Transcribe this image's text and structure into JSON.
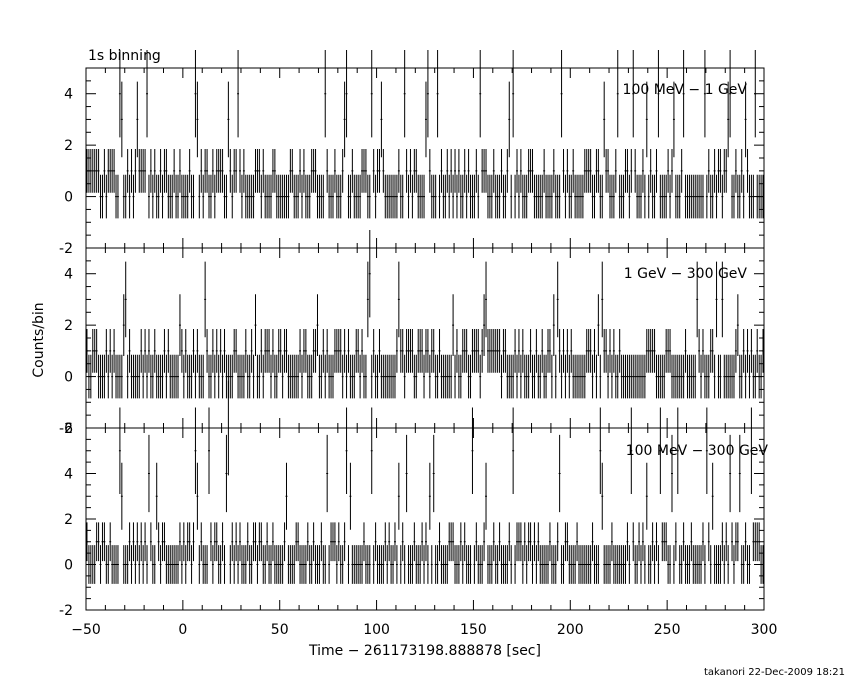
{
  "chart_data": {
    "type": "line",
    "title": "1s binning",
    "xlabel": "Time − 261173198.888878 [sec]",
    "ylabel": "Counts/bin",
    "xlim": [
      -50,
      300
    ],
    "x_ticks": [
      -50,
      0,
      50,
      100,
      150,
      200,
      250,
      300
    ],
    "grid": false,
    "binning_sec": 1,
    "color": "#000000",
    "panels": [
      {
        "label": "100 MeV − 1 GeV",
        "ylim": [
          -2,
          5
        ],
        "y_ticks": [
          -2,
          0,
          2,
          4
        ],
        "peaks": [
          [
            -32,
            3
          ],
          [
            -24,
            3
          ],
          [
            7,
            3
          ],
          [
            23,
            3
          ],
          [
            83,
            3
          ],
          [
            102,
            3
          ],
          [
            125,
            3
          ],
          [
            168,
            3
          ],
          [
            217,
            3
          ],
          [
            239,
            3
          ],
          [
            253,
            3
          ],
          [
            281,
            3
          ],
          [
            290,
            3
          ],
          [
            -33,
            4
          ],
          [
            -19,
            4
          ],
          [
            6,
            4
          ],
          [
            28,
            4
          ],
          [
            73,
            4
          ],
          [
            84,
            4
          ],
          [
            97,
            4
          ],
          [
            114,
            4
          ],
          [
            126,
            4
          ],
          [
            131,
            4
          ],
          [
            153,
            4
          ],
          [
            170,
            4
          ],
          [
            195,
            4
          ],
          [
            224,
            4
          ],
          [
            232,
            4
          ],
          [
            245,
            4
          ],
          [
            258,
            4
          ],
          [
            269,
            4
          ],
          [
            282,
            4
          ],
          [
            295,
            4
          ]
        ]
      },
      {
        "label": "1 GeV − 300 GeV",
        "ylim": [
          -2,
          5
        ],
        "y_ticks": [
          -2,
          0,
          2,
          4
        ],
        "peaks": [
          [
            -31,
            2
          ],
          [
            -2,
            2
          ],
          [
            11,
            2
          ],
          [
            37,
            2
          ],
          [
            69,
            2
          ],
          [
            95,
            3
          ],
          [
            111,
            2
          ],
          [
            139,
            2
          ],
          [
            155,
            2
          ],
          [
            191,
            2
          ],
          [
            214,
            2
          ],
          [
            265,
            2
          ],
          [
            286,
            2
          ],
          [
            -30,
            3
          ],
          [
            11,
            3
          ],
          [
            96,
            4
          ],
          [
            111,
            3
          ],
          [
            156,
            3
          ],
          [
            193,
            3
          ],
          [
            216,
            3
          ],
          [
            265,
            3
          ],
          [
            275,
            3
          ],
          [
            278,
            3
          ]
        ]
      },
      {
        "label": "100 MeV − 300 GeV",
        "ylim": [
          -2,
          6
        ],
        "y_ticks": [
          -2,
          0,
          2,
          4,
          6
        ],
        "peaks": [
          [
            -32,
            3
          ],
          [
            -14,
            3
          ],
          [
            7,
            3
          ],
          [
            22,
            4
          ],
          [
            53,
            3
          ],
          [
            86,
            3
          ],
          [
            111,
            3
          ],
          [
            127,
            3
          ],
          [
            156,
            3
          ],
          [
            170,
            3
          ],
          [
            194,
            3
          ],
          [
            216,
            3
          ],
          [
            239,
            3
          ],
          [
            252,
            4
          ],
          [
            273,
            3
          ],
          [
            287,
            4
          ],
          [
            293,
            3
          ],
          [
            -33,
            5
          ],
          [
            -18,
            4
          ],
          [
            6,
            5
          ],
          [
            13,
            5
          ],
          [
            23,
            6
          ],
          [
            74,
            4
          ],
          [
            84,
            5
          ],
          [
            97,
            5
          ],
          [
            115,
            4
          ],
          [
            129,
            4
          ],
          [
            149,
            5
          ],
          [
            170,
            5
          ],
          [
            194,
            4
          ],
          [
            215,
            5
          ],
          [
            231,
            5
          ],
          [
            246,
            5
          ],
          [
            255,
            5
          ],
          [
            270,
            5
          ],
          [
            282,
            4
          ],
          [
            293,
            5
          ]
        ]
      }
    ]
  },
  "footer": "takanori 22-Dec-2009 18:21"
}
